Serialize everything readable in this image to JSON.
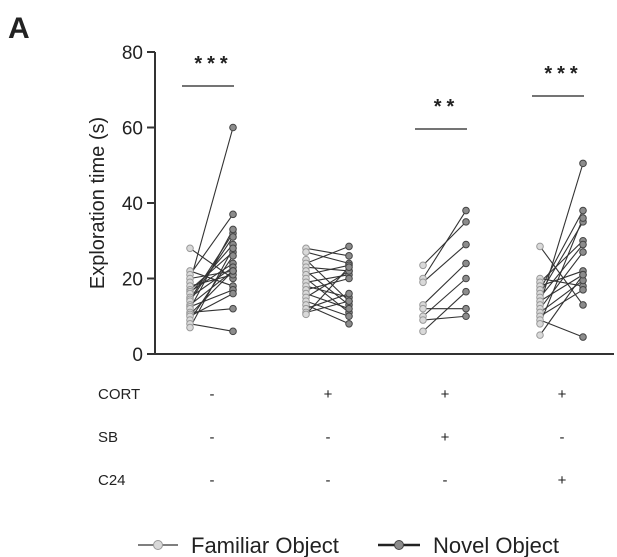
{
  "panel_label": "A",
  "chart_data": {
    "type": "scatter",
    "subtype": "paired-points",
    "ylabel": "Exploration time (s)",
    "ylim": [
      0,
      80
    ],
    "yticks": [
      0,
      20,
      40,
      60,
      80
    ],
    "grid": false,
    "colors": {
      "familiar": "#d9d9d9",
      "novel": "#8c8c8c",
      "line": "#333333"
    },
    "legend": {
      "placement": "bottom",
      "entries": [
        {
          "label": "Familiar Object",
          "color": "#d9d9d9"
        },
        {
          "label": "Novel Object",
          "color": "#8c8c8c"
        }
      ]
    },
    "conditions": [
      {
        "label": "CORT",
        "values": [
          "-",
          "+",
          "+",
          "+"
        ]
      },
      {
        "label": "SB",
        "values": [
          "-",
          "-",
          "+",
          "-"
        ]
      },
      {
        "label": "C24",
        "values": [
          "-",
          "-",
          "-",
          "+"
        ]
      }
    ],
    "groups": [
      {
        "significance": "***",
        "familiar": [
          28,
          22,
          21,
          20,
          19,
          18,
          17,
          16.5,
          16,
          15,
          14.5,
          14,
          13,
          12.5,
          12,
          11,
          10.5,
          10,
          9,
          8,
          7
        ],
        "novel": [
          20,
          18,
          37,
          22,
          60,
          21,
          27,
          24,
          29,
          23,
          32,
          31,
          22,
          17,
          33,
          12,
          22,
          16,
          26,
          6,
          28
        ]
      },
      {
        "significance": "",
        "familiar": [
          28,
          27,
          25,
          24,
          23,
          22,
          21,
          20,
          19,
          18,
          17,
          16,
          15,
          14,
          13,
          12,
          11,
          10.5
        ],
        "novel": [
          26,
          24,
          14,
          28.5,
          22,
          13,
          23.5,
          11,
          21,
          15,
          20,
          12,
          22,
          10,
          8,
          16,
          14,
          23
        ]
      },
      {
        "significance": "**",
        "familiar": [
          23.5,
          20,
          19,
          13,
          12,
          10,
          9,
          6
        ],
        "novel": [
          35,
          38,
          29,
          24,
          12,
          20,
          10,
          16.5
        ]
      },
      {
        "significance": "***",
        "familiar": [
          28.5,
          20,
          19,
          18,
          17,
          16,
          15,
          14,
          13,
          12,
          11,
          10,
          9,
          8,
          5
        ],
        "novel": [
          13,
          18,
          30,
          22,
          38,
          35,
          29,
          21,
          50.5,
          27,
          19.5,
          17,
          4.5,
          36,
          21
        ]
      }
    ]
  }
}
